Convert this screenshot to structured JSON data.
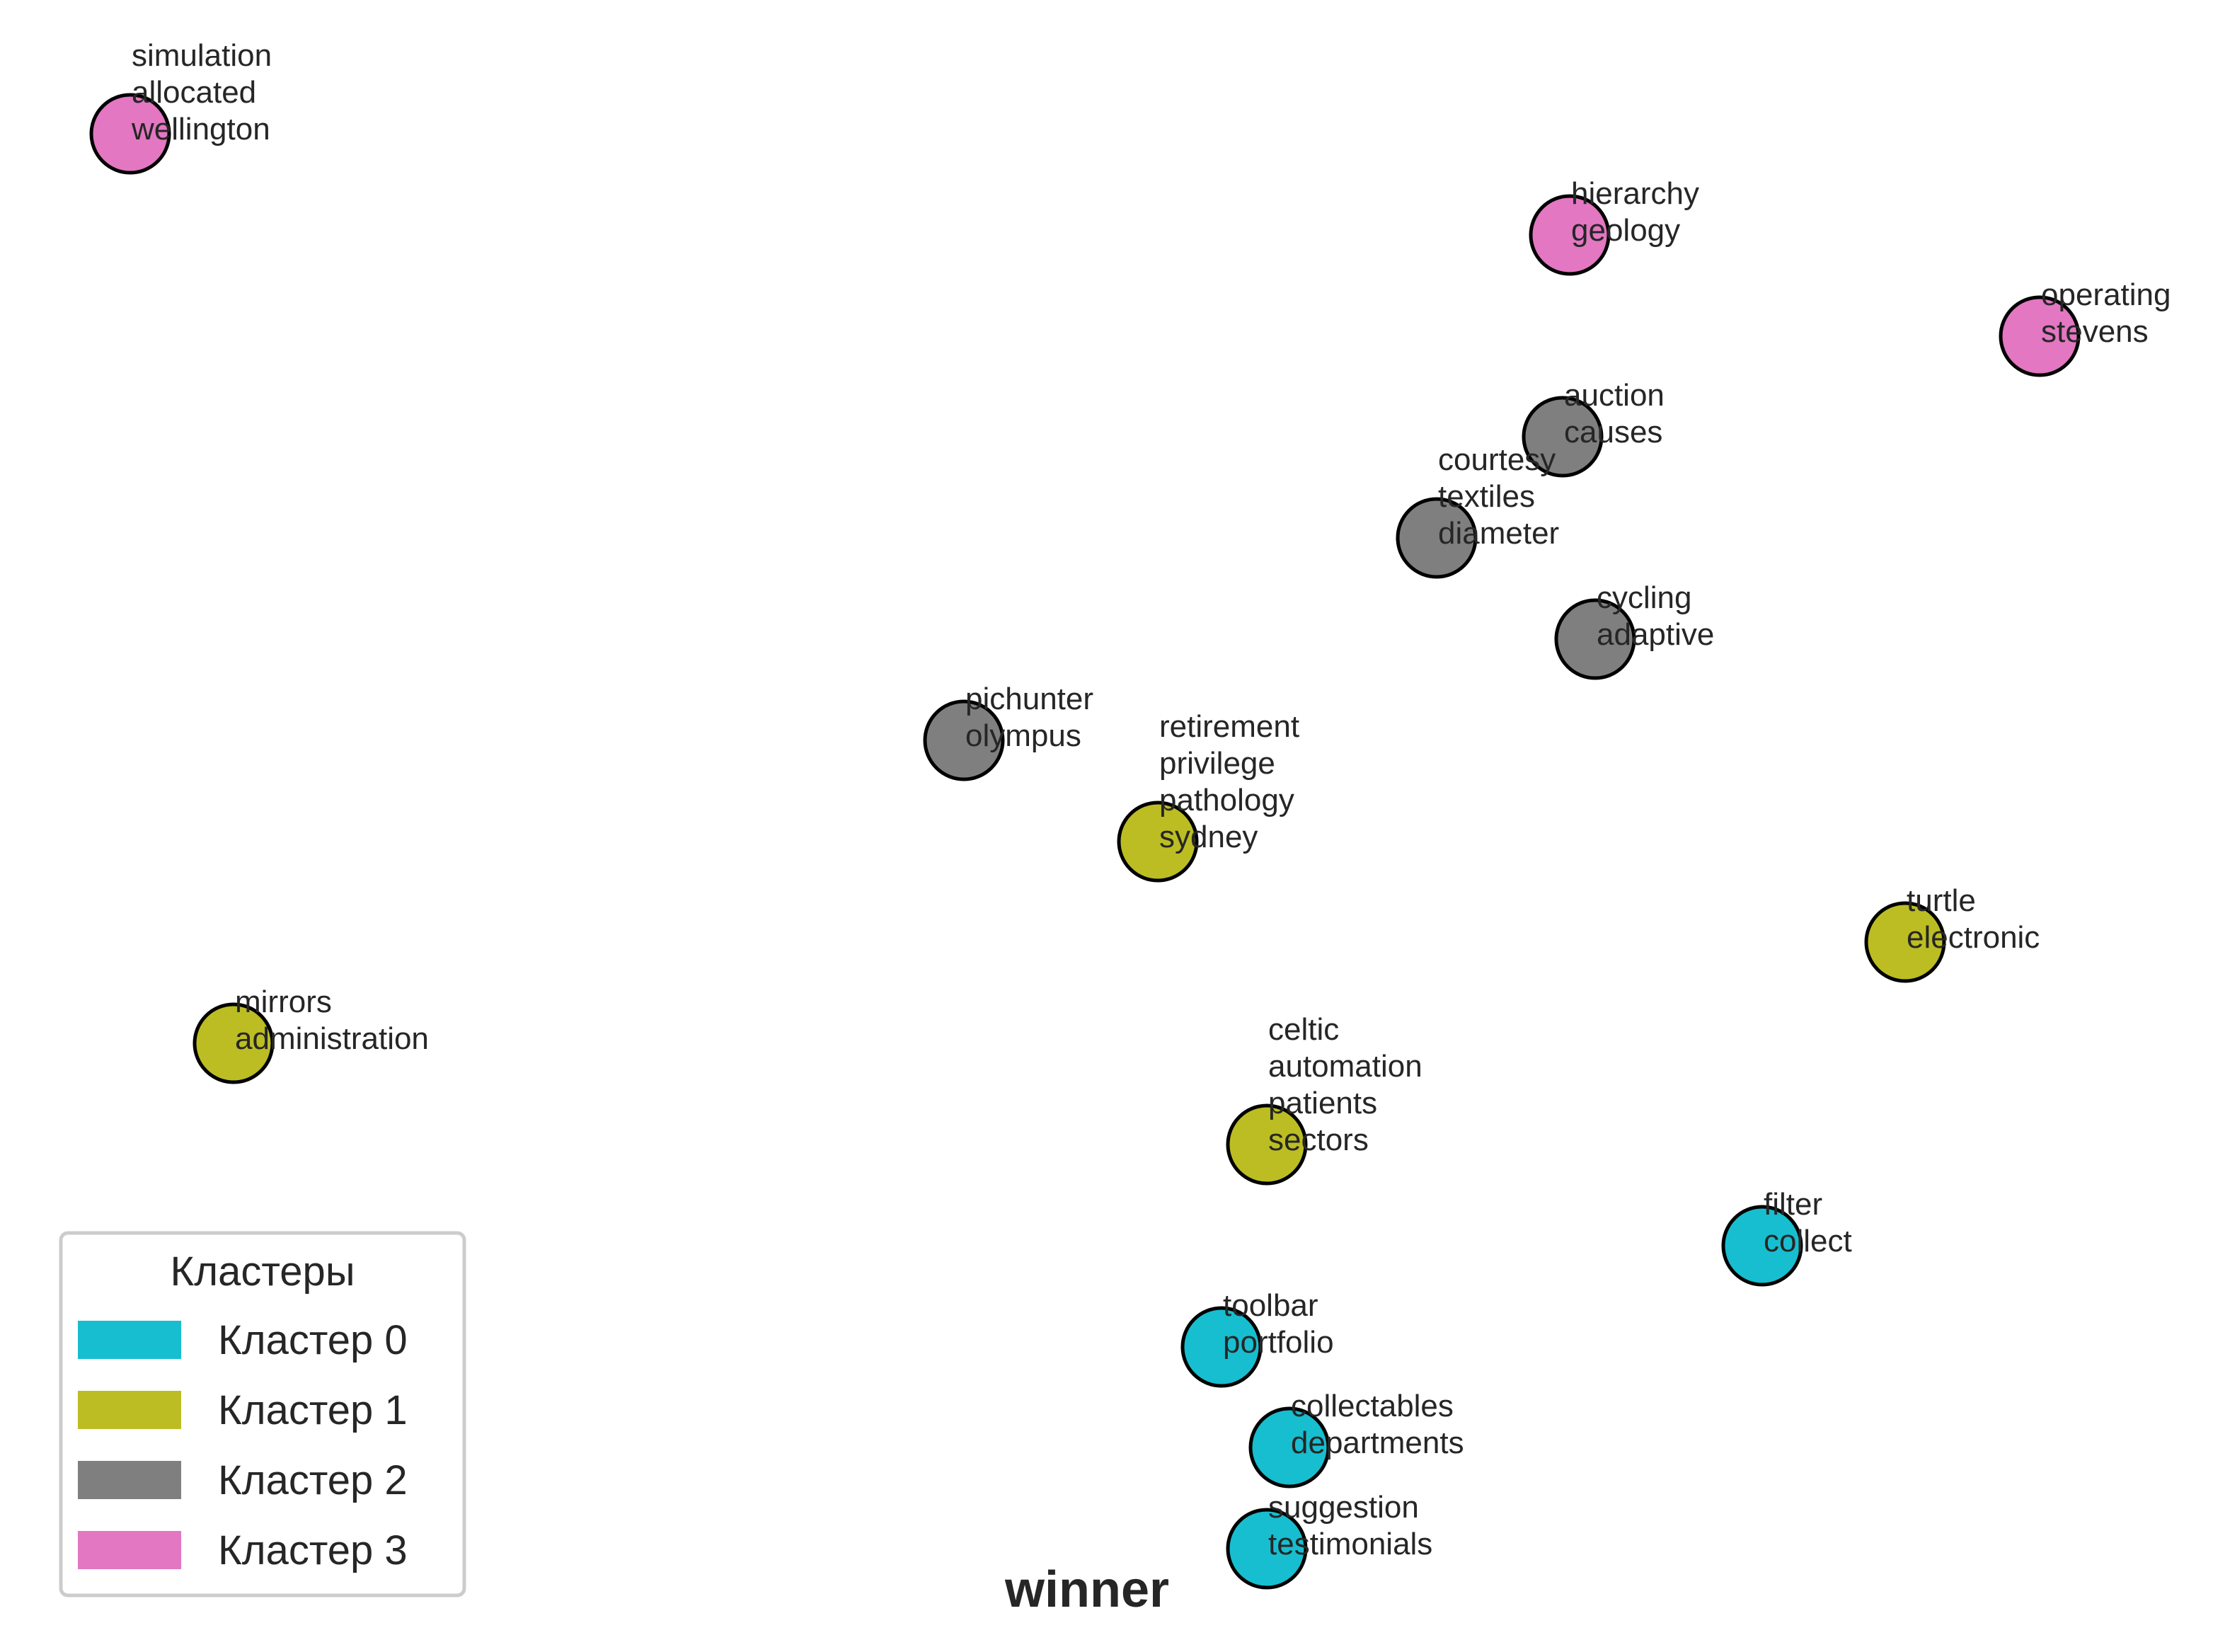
{
  "title": "winner",
  "legend": {
    "title": "Кластеры",
    "items": [
      {
        "label": "Кластер 0",
        "color": "#17becf"
      },
      {
        "label": "Кластер 1",
        "color": "#bcbd22"
      },
      {
        "label": "Кластер 2",
        "color": "#7f7f7f"
      },
      {
        "label": "Кластер 3",
        "color": "#e377c2"
      }
    ]
  },
  "nodes": [
    {
      "id": "n1",
      "cluster": 3,
      "words": [
        "simulation",
        "allocated",
        "wellington"
      ]
    },
    {
      "id": "n2",
      "cluster": 3,
      "words": [
        "hierarchy",
        "geology"
      ]
    },
    {
      "id": "n3",
      "cluster": 3,
      "words": [
        "operating",
        "stevens"
      ]
    },
    {
      "id": "n4",
      "cluster": 2,
      "words": [
        "auction",
        "causes"
      ]
    },
    {
      "id": "n5",
      "cluster": 2,
      "words": [
        "courtesy",
        "textiles",
        "diameter"
      ]
    },
    {
      "id": "n6",
      "cluster": 2,
      "words": [
        "cycling",
        "adaptive"
      ]
    },
    {
      "id": "n7",
      "cluster": 2,
      "words": [
        "pichunter",
        "olympus"
      ]
    },
    {
      "id": "n8",
      "cluster": 1,
      "words": [
        "retirement",
        "privilege",
        "pathology",
        "sydney"
      ]
    },
    {
      "id": "n9",
      "cluster": 1,
      "words": [
        "turtle",
        "electronic"
      ]
    },
    {
      "id": "n10",
      "cluster": 1,
      "words": [
        "mirrors",
        "administration"
      ]
    },
    {
      "id": "n11",
      "cluster": 1,
      "words": [
        "celtic",
        "automation",
        "patients",
        "sectors"
      ]
    },
    {
      "id": "n12",
      "cluster": 0,
      "words": [
        "filter",
        "collect"
      ]
    },
    {
      "id": "n13",
      "cluster": 0,
      "words": [
        "toolbar",
        "portfolio"
      ]
    },
    {
      "id": "n14",
      "cluster": 0,
      "words": [
        "collectables",
        "departments"
      ]
    },
    {
      "id": "n15",
      "cluster": 0,
      "words": [
        "suggestion",
        "testimonials"
      ]
    }
  ]
}
